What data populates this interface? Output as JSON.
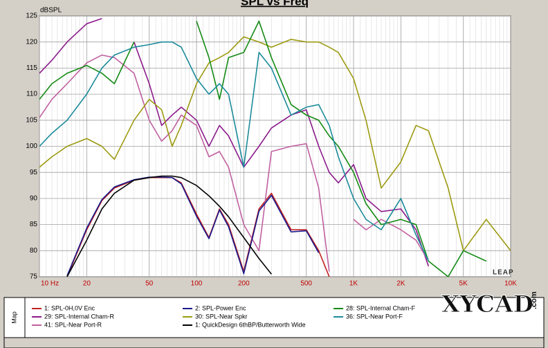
{
  "chart_data": {
    "type": "line",
    "title": "SPL vs Freq",
    "y_label": "dBSPL",
    "log_x": true,
    "grid": true,
    "xlim": [
      10,
      10000
    ],
    "ylim": [
      75,
      125
    ],
    "xticks": [
      {
        "value": 10,
        "label": "10 Hz"
      },
      20,
      50,
      100,
      200,
      500,
      {
        "value": 1000,
        "label": "1K"
      },
      {
        "value": 2000,
        "label": "2K"
      },
      {
        "value": 5000,
        "label": "5K"
      },
      {
        "value": 10000,
        "label": "10K"
      }
    ],
    "yticks": [
      75,
      80,
      85,
      90,
      95,
      100,
      105,
      110,
      115,
      120,
      125
    ],
    "watermark": "LEAP",
    "legend_label": "Map",
    "site_mark": "XYCAD",
    "site_suffix": ".com",
    "x": [
      10,
      12,
      15,
      20,
      25,
      30,
      40,
      50,
      60,
      70,
      80,
      100,
      120,
      140,
      160,
      200,
      250,
      300,
      400,
      500,
      600,
      700,
      800,
      1000,
      1200,
      1500,
      2000,
      2500,
      3000,
      4000,
      5000,
      7000,
      10000
    ],
    "series": [
      {
        "name": "1: SPL-0H,0V Enc",
        "color": "#c02020",
        "values": [
          null,
          null,
          75,
          84,
          89.6,
          92,
          93.5,
          94,
          94,
          94,
          93,
          87,
          82.5,
          88,
          85,
          76,
          88,
          91,
          84,
          84,
          80,
          75,
          null,
          null,
          null,
          null,
          null,
          null,
          null,
          null,
          null,
          null,
          null
        ]
      },
      {
        "name": "29: SPL-Internal Cham-R",
        "color": "#8b1a8b",
        "values": [
          114,
          116.5,
          120,
          123.5,
          124.5,
          null,
          120,
          112,
          104,
          106,
          107.5,
          105,
          100,
          104,
          102,
          96,
          100,
          103.5,
          106,
          107,
          100,
          95,
          93,
          96.5,
          90,
          87.5,
          88,
          84,
          77,
          null,
          null,
          null,
          null
        ]
      },
      {
        "name": "41: SPL-Near Port-R",
        "color": "#c060a0",
        "values": [
          105.5,
          109,
          112,
          116,
          117.5,
          117,
          114,
          105,
          101,
          103,
          106,
          104,
          98,
          99,
          96,
          85,
          80,
          99,
          100,
          100.5,
          92,
          76,
          null,
          86,
          84,
          86,
          84,
          82,
          78,
          null,
          null,
          null,
          null
        ]
      },
      {
        "name": "2: SPL-Power Enc",
        "color": "#1a1a8c",
        "values": [
          null,
          null,
          75.2,
          84.3,
          89.8,
          92.2,
          93.6,
          94.1,
          94.1,
          94,
          92.8,
          86.6,
          82.3,
          87.8,
          84.6,
          75.6,
          87.6,
          90.6,
          83.6,
          83.8,
          79.6,
          null,
          null,
          null,
          null,
          null,
          null,
          null,
          null,
          null,
          null,
          null,
          null
        ]
      },
      {
        "name": "30: SPL-Near Spkr",
        "color": "#9c9a10",
        "values": [
          96,
          98,
          100,
          101.5,
          100,
          97.5,
          105,
          109,
          107,
          100,
          104,
          112,
          116,
          117,
          118,
          121,
          120,
          119,
          120.5,
          120,
          120,
          119,
          118,
          113,
          105,
          92,
          97,
          104,
          103,
          92,
          80,
          86,
          80
        ]
      },
      {
        "name": "1: QuickDesign 6thBP/Butterworth Wide",
        "color": "#000000",
        "values": [
          null,
          null,
          75,
          82,
          88,
          91,
          93.5,
          94,
          94.3,
          94.3,
          94,
          92.5,
          90.5,
          88.5,
          86.5,
          82.5,
          78.5,
          75.5,
          null,
          null,
          null,
          null,
          null,
          null,
          null,
          null,
          null,
          null,
          null,
          null,
          null,
          null,
          null
        ]
      },
      {
        "name": "28: SPL-Internal Cham-F",
        "color": "#138a13",
        "values": [
          109,
          112,
          114,
          115.5,
          114,
          112,
          120,
          null,
          null,
          null,
          null,
          124,
          117,
          109,
          117,
          118,
          124,
          117,
          108,
          106,
          105,
          102,
          100,
          95,
          89,
          85,
          86,
          85,
          78,
          75,
          80,
          78,
          null
        ]
      },
      {
        "name": "36: SPL-Near Port-F",
        "color": "#1a8a9a",
        "values": [
          100,
          102.5,
          105,
          110,
          115,
          117.5,
          119,
          119.5,
          120,
          120,
          119,
          113,
          110,
          112,
          110,
          96,
          118,
          115,
          106,
          107.5,
          108,
          104,
          98,
          90,
          86,
          84,
          90,
          83,
          78,
          null,
          null,
          null,
          null
        ]
      }
    ]
  }
}
